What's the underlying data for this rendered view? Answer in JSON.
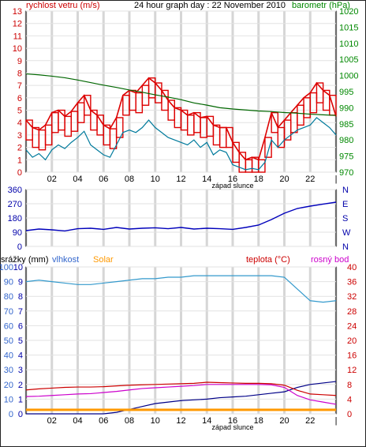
{
  "header": {
    "title": "24 hour graph day : 22 November 2010",
    "left_label": "rychlost vetru (m/s)",
    "right_label": "barometr (hPa)"
  },
  "colors": {
    "wind": "#dd0000",
    "gust": "#dd0000",
    "avg_wind": "#007a9c",
    "baro": "#006600",
    "dir": "#0000bb",
    "rain": "#000088",
    "humidity": "#3399cc",
    "solar": "#ff9900",
    "temp": "#cc0000",
    "dew": "#cc00cc",
    "grid": "#cccccc",
    "night": "#dddddd",
    "blue_label": "#3366cc",
    "green_label": "#008800",
    "red_label": "#cc0000",
    "magenta_label": "#cc00cc",
    "orange_label": "#ff9900",
    "navy_label": "#0000aa"
  },
  "x_axis": {
    "hour_labels": [
      "02",
      "04",
      "06",
      "08",
      "10",
      "12",
      "14",
      "16",
      "18",
      "20",
      "22"
    ],
    "sunset_label": "západ slunce"
  },
  "panel_bottom": {
    "left_title": "srážky (mm)",
    "humidity_title": "vlhkost",
    "solar_title": "Solar",
    "temp_title": "teplota (°C)",
    "dew_title": "rosný bod"
  },
  "chart_data": [
    {
      "type": "line",
      "title": "24 hour graph day : 22 November 2010",
      "x_unit": "hour",
      "xlim": [
        0,
        24
      ],
      "left_axis": {
        "label": "rychlost vetru (m/s)",
        "ylim": [
          0,
          13
        ],
        "ticks": [
          0,
          1,
          2,
          3,
          4,
          5,
          6,
          7,
          8,
          9,
          10,
          11,
          12,
          13
        ]
      },
      "right_axis": {
        "label": "barometr (hPa)",
        "ylim": [
          970,
          1020
        ],
        "ticks": [
          970,
          975,
          980,
          985,
          990,
          995,
          1000,
          1005,
          1010,
          1015,
          1020
        ]
      },
      "series": [
        {
          "name": "rychlost vetru (m/s)",
          "axis": "left",
          "style": "gust-bars",
          "x": [
            0,
            0.5,
            1,
            1.5,
            2,
            2.5,
            3,
            3.5,
            4,
            4.5,
            5,
            5.5,
            6,
            6.5,
            7,
            7.5,
            8,
            8.5,
            9,
            9.5,
            10,
            10.5,
            11,
            11.5,
            12,
            12.5,
            13,
            13.5,
            14,
            14.5,
            15,
            15.5,
            16,
            16.5,
            17,
            17.5,
            18,
            18.5,
            19,
            19.5,
            20,
            20.5,
            21,
            21.5,
            22,
            22.5,
            23,
            23.5,
            24
          ],
          "y": [
            4.2,
            3.6,
            3.4,
            3.8,
            4.8,
            5.0,
            4.5,
            4.9,
            5.6,
            6.2,
            5.0,
            4.6,
            3.8,
            3.5,
            4.4,
            6.2,
            6.6,
            6.4,
            7.0,
            7.6,
            7.2,
            6.6,
            5.8,
            5.2,
            5.0,
            4.6,
            4.8,
            4.4,
            4.5,
            3.8,
            3.6,
            3.6,
            2.4,
            1.6,
            1.0,
            1.2,
            1.0,
            2.8,
            4.8,
            3.6,
            4.2,
            4.8,
            5.4,
            6.0,
            6.4,
            7.2,
            6.6,
            6.2,
            4.5
          ]
        },
        {
          "name": "avg wind",
          "axis": "left",
          "x": [
            0,
            0.5,
            1,
            1.5,
            2,
            2.5,
            3,
            3.5,
            4,
            4.5,
            5,
            5.5,
            6,
            6.5,
            7,
            7.5,
            8,
            8.5,
            9,
            9.5,
            10,
            10.5,
            11,
            11.5,
            12,
            12.5,
            13,
            13.5,
            14,
            14.5,
            15,
            15.5,
            16,
            16.5,
            17,
            17.5,
            18,
            18.5,
            19,
            19.5,
            20,
            20.5,
            21,
            21.5,
            22,
            22.5,
            23,
            23.5,
            24
          ],
          "y": [
            1.8,
            1.2,
            1.5,
            1.0,
            1.8,
            2.2,
            1.9,
            2.4,
            2.8,
            3.3,
            2.2,
            1.8,
            1.4,
            1.2,
            2.2,
            3.2,
            3.4,
            3.2,
            3.6,
            4.2,
            3.6,
            3.2,
            2.8,
            2.6,
            2.4,
            2.2,
            2.6,
            2.0,
            2.4,
            1.4,
            1.8,
            1.6,
            0.6,
            0.4,
            0.2,
            0.3,
            0.2,
            0.8,
            2.6,
            2.0,
            2.6,
            3.0,
            3.4,
            3.6,
            3.8,
            4.4,
            4.0,
            3.6,
            3.0
          ]
        },
        {
          "name": "barometr (hPa)",
          "axis": "right",
          "x": [
            0,
            1,
            2,
            3,
            4,
            5,
            6,
            7,
            8,
            9,
            10,
            11,
            12,
            13,
            14,
            15,
            16,
            17,
            18,
            19,
            20,
            21,
            22,
            23,
            24
          ],
          "y": [
            1000.5,
            1000.2,
            999.8,
            999.3,
            998.6,
            997.8,
            997.0,
            996.3,
            995.5,
            994.8,
            994.0,
            993.3,
            992.5,
            991.5,
            990.8,
            990.0,
            989.6,
            989.3,
            989.0,
            988.8,
            988.5,
            988.3,
            988.0,
            987.8,
            987.6
          ]
        }
      ]
    },
    {
      "type": "line",
      "x_unit": "hour",
      "xlim": [
        0,
        24
      ],
      "left_axis": {
        "ylim": [
          0,
          360
        ],
        "ticks": [
          0,
          90,
          180,
          270,
          360
        ]
      },
      "right_axis": {
        "tick_labels": [
          "N",
          "W",
          "S",
          "E",
          "N"
        ]
      },
      "series": [
        {
          "name": "wind direction",
          "x": [
            0,
            1,
            2,
            3,
            4,
            5,
            6,
            7,
            8,
            9,
            10,
            11,
            12,
            13,
            14,
            15,
            16,
            17,
            18,
            19,
            20,
            21,
            22,
            23,
            24
          ],
          "y": [
            100,
            110,
            105,
            98,
            112,
            115,
            108,
            120,
            110,
            115,
            118,
            112,
            120,
            110,
            115,
            112,
            108,
            120,
            135,
            170,
            210,
            240,
            255,
            268,
            280
          ]
        }
      ]
    },
    {
      "type": "line",
      "x_unit": "hour",
      "xlim": [
        0,
        24
      ],
      "left_axis": {
        "label": "srážky (mm)",
        "ylim": [
          0,
          10
        ],
        "ticks": [
          0,
          1,
          2,
          3,
          4,
          5,
          6,
          7,
          8,
          9,
          10
        ]
      },
      "humidity_axis": {
        "label": "vlhkost",
        "ylim": [
          0,
          100
        ],
        "ticks": [
          0,
          10,
          20,
          30,
          40,
          50,
          60,
          70,
          80,
          90,
          100
        ]
      },
      "right_axis": {
        "label": "teplota (°C)",
        "ylim": [
          0,
          40
        ],
        "ticks": [
          0,
          4,
          8,
          12,
          16,
          20,
          24,
          28,
          32,
          36,
          40
        ]
      },
      "series": [
        {
          "name": "vlhkost",
          "axis": "humidity",
          "x": [
            0,
            1,
            2,
            3,
            4,
            5,
            6,
            7,
            8,
            9,
            10,
            11,
            12,
            13,
            14,
            15,
            16,
            17,
            18,
            19,
            20,
            21,
            22,
            23,
            24
          ],
          "y": [
            90,
            91,
            90,
            89,
            88,
            88,
            89,
            90,
            91,
            92,
            92,
            93,
            93,
            94,
            94,
            94,
            94,
            94,
            94,
            94,
            93,
            85,
            77,
            76,
            77
          ]
        },
        {
          "name": "srážky (mm)",
          "axis": "rain",
          "x": [
            0,
            2,
            4,
            6,
            7,
            8,
            9,
            10,
            11,
            12,
            13,
            14,
            15,
            16,
            17,
            18,
            19,
            20,
            21,
            22,
            23,
            24
          ],
          "y": [
            0,
            0,
            0,
            0,
            0.1,
            0.3,
            0.5,
            0.7,
            0.8,
            0.9,
            0.95,
            1.0,
            1.1,
            1.15,
            1.2,
            1.3,
            1.4,
            1.5,
            1.8,
            2.0,
            2.1,
            2.2
          ]
        },
        {
          "name": "Solar",
          "axis": "solar",
          "x": [
            0,
            24
          ],
          "y": [
            0.3,
            0.3
          ]
        },
        {
          "name": "teplota (°C)",
          "axis": "right",
          "x": [
            0,
            1,
            2,
            3,
            4,
            5,
            6,
            7,
            8,
            9,
            10,
            11,
            12,
            13,
            14,
            15,
            16,
            17,
            18,
            19,
            20,
            21,
            22,
            23,
            24
          ],
          "y": [
            6.5,
            6.8,
            7.0,
            7.2,
            7.3,
            7.3,
            7.4,
            7.6,
            7.8,
            7.9,
            8.0,
            8.1,
            8.2,
            8.3,
            8.6,
            8.5,
            8.4,
            8.3,
            8.3,
            8.2,
            7.8,
            6.4,
            5.4,
            5.2,
            5.0
          ]
        },
        {
          "name": "rosný bod",
          "axis": "right",
          "x": [
            0,
            1,
            2,
            3,
            4,
            5,
            6,
            7,
            8,
            9,
            10,
            11,
            12,
            13,
            14,
            15,
            16,
            17,
            18,
            19,
            20,
            21,
            22,
            23,
            24
          ],
          "y": [
            4.7,
            4.8,
            5.0,
            5.2,
            5.4,
            5.5,
            5.8,
            6.1,
            6.5,
            6.9,
            7.1,
            7.3,
            7.5,
            7.7,
            8.0,
            8.0,
            8.0,
            8.0,
            8.0,
            7.9,
            7.2,
            5.0,
            3.8,
            3.2,
            2.6
          ]
        }
      ]
    }
  ]
}
